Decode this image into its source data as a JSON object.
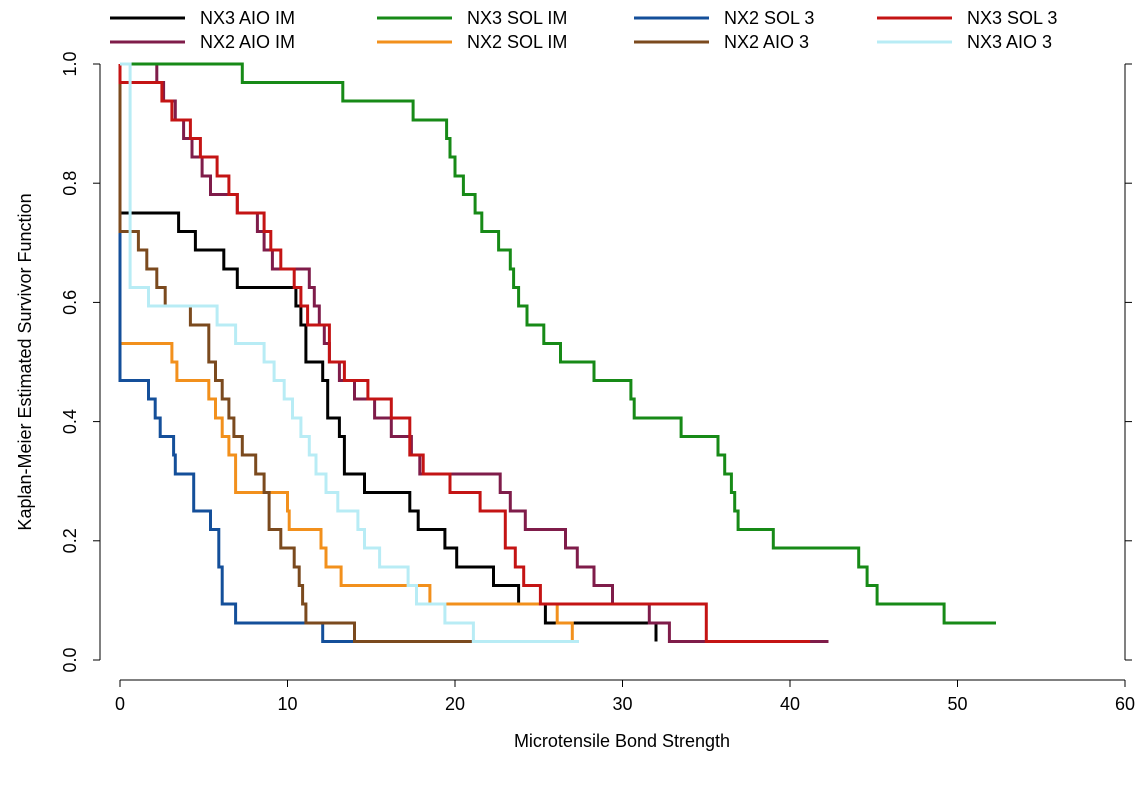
{
  "chart_data": {
    "type": "line",
    "step": true,
    "xlabel": "Microtensile Bond Strength",
    "ylabel": "Kaplan-Meier Estimated Survivor Function",
    "xlim": [
      0,
      60
    ],
    "ylim": [
      0,
      1
    ],
    "xticks": [
      "0",
      "10",
      "20",
      "30",
      "40",
      "50",
      "60"
    ],
    "yticks": [
      "0.0",
      "0.2",
      "0.4",
      "0.6",
      "0.8",
      "1.0"
    ],
    "grid": false,
    "legend_position": "top",
    "series": [
      {
        "name": "NX3 AIO IM",
        "color": "#000000",
        "x": [
          0,
          3.5,
          4.5,
          6.2,
          7,
          10.5,
          10.8,
          11.1,
          12.1,
          12.4,
          13.1,
          13.4,
          14.6,
          15.3,
          17.3,
          17.8,
          19.4,
          20.1,
          22.3,
          23.8,
          24.1,
          25.4,
          32
        ],
        "y": [
          0.75,
          0.719,
          0.688,
          0.656,
          0.625,
          0.594,
          0.562,
          0.5,
          0.469,
          0.406,
          0.375,
          0.312,
          0.281,
          0.281,
          0.25,
          0.219,
          0.188,
          0.156,
          0.125,
          0.094,
          0.094,
          0.062,
          0.031
        ]
      },
      {
        "name": "NX2 AIO IM",
        "color": "#7f1c4a",
        "x": [
          0,
          2.2,
          2.6,
          3.3,
          3.8,
          4.3,
          4.9,
          5.4,
          7,
          8.2,
          8.6,
          9.1,
          11.3,
          11.6,
          11.9,
          12.2,
          12.5,
          13.1,
          14,
          15.2,
          16.2,
          17.4,
          17.9,
          22.7,
          23.3,
          24.2,
          26.6,
          27.3,
          28.3,
          29.4,
          31.6,
          32.8,
          33.7,
          36.1,
          36.4,
          36.7,
          37.2,
          38.2,
          38.6,
          40.2,
          42.3,
          41.5
        ],
        "y": [
          1,
          0.969,
          0.938,
          0.906,
          0.875,
          0.844,
          0.812,
          0.781,
          0.75,
          0.719,
          0.688,
          0.656,
          0.625,
          0.594,
          0.562,
          0.531,
          0.5,
          0.469,
          0.438,
          0.406,
          0.375,
          0.344,
          0.312,
          0.281,
          0.25,
          0.219,
          0.188,
          0.156,
          0.125,
          0.094,
          0.062,
          0.031,
          0.031,
          0.031,
          0.031,
          0.031,
          0.031,
          0.031,
          0.031,
          0.031,
          0.031,
          0.031
        ]
      },
      {
        "name": "NX3 SOL IM",
        "color": "#178a17",
        "x": [
          0,
          7.3,
          13.3,
          17.5,
          19.5,
          19.7,
          20,
          20.5,
          21.2,
          21.6,
          22.6,
          23.3,
          23.5,
          23.8,
          24.3,
          25.3,
          26.3,
          28.3,
          30.5,
          30.7,
          31,
          31.3,
          33.5,
          35.7,
          36.1,
          36.5,
          36.7,
          36.9,
          38.8,
          39,
          39.3,
          44.1,
          44.6,
          45.2,
          45.6,
          49.2,
          52.3
        ],
        "y": [
          1,
          0.969,
          0.938,
          0.906,
          0.875,
          0.844,
          0.812,
          0.781,
          0.75,
          0.719,
          0.688,
          0.656,
          0.625,
          0.594,
          0.562,
          0.531,
          0.5,
          0.469,
          0.438,
          0.406,
          0.406,
          0.406,
          0.375,
          0.344,
          0.312,
          0.281,
          0.25,
          0.219,
          0.219,
          0.188,
          0.188,
          0.156,
          0.125,
          0.094,
          0.094,
          0.062,
          0.062
        ]
      },
      {
        "name": "NX2 SOL IM",
        "color": "#f2901c",
        "x": [
          0,
          3.1,
          3.4,
          5.3,
          5.7,
          6.1,
          6.5,
          6.9,
          10,
          10.1,
          12,
          12.3,
          13.2,
          18.5,
          19.3,
          26.1,
          27
        ],
        "y": [
          0.531,
          0.5,
          0.469,
          0.438,
          0.406,
          0.375,
          0.344,
          0.281,
          0.25,
          0.219,
          0.188,
          0.156,
          0.125,
          0.094,
          0.094,
          0.062,
          0.031
        ]
      },
      {
        "name": "NX2 SOL 3",
        "color": "#144f9a",
        "x": [
          0,
          1.7,
          2.1,
          2.4,
          3.2,
          3.3,
          4.4,
          5.4,
          5.9,
          6.1,
          6.9,
          12.1,
          14,
          21
        ],
        "y": [
          0.469,
          0.438,
          0.406,
          0.375,
          0.344,
          0.312,
          0.25,
          0.219,
          0.156,
          0.094,
          0.062,
          0.031,
          0.031,
          0.031
        ]
      },
      {
        "name": "NX2 AIO 3",
        "color": "#7b4a1e",
        "x": [
          0,
          1.1,
          1.6,
          2.2,
          2.7,
          4.2,
          5.3,
          5.7,
          6.1,
          6.5,
          6.8,
          7.3,
          8.1,
          8.6,
          8.9,
          9.6,
          10.4,
          10.7,
          10.9,
          11.1,
          14,
          21
        ],
        "y": [
          0.719,
          0.688,
          0.656,
          0.625,
          0.594,
          0.562,
          0.5,
          0.469,
          0.438,
          0.406,
          0.375,
          0.344,
          0.312,
          0.281,
          0.219,
          0.188,
          0.156,
          0.125,
          0.094,
          0.062,
          0.031,
          0.031
        ]
      },
      {
        "name": "NX3 SOL 3",
        "color": "#c41414",
        "x": [
          0,
          2.5,
          3.1,
          4.2,
          4.8,
          5.8,
          6.5,
          7,
          8.6,
          9,
          9.6,
          10.4,
          10.8,
          11.2,
          12.5,
          13.4,
          14.8,
          16.2,
          17.3,
          18.1,
          19.7,
          21.5,
          23,
          23.6,
          24.1,
          25.1,
          30.8,
          35,
          41.2
        ],
        "y": [
          0.969,
          0.938,
          0.906,
          0.875,
          0.844,
          0.812,
          0.781,
          0.75,
          0.719,
          0.688,
          0.656,
          0.625,
          0.594,
          0.562,
          0.5,
          0.469,
          0.438,
          0.406,
          0.344,
          0.312,
          0.281,
          0.25,
          0.188,
          0.156,
          0.125,
          0.094,
          0.094,
          0.031,
          0.031
        ]
      },
      {
        "name": "NX3 AIO 3",
        "color": "#b8ecf5",
        "x": [
          0,
          0.6,
          1.7,
          5.8,
          6.9,
          7.5,
          8.6,
          9.2,
          9.8,
          10.3,
          10.8,
          11.3,
          11.7,
          12.3,
          13,
          14.2,
          14.6,
          15.5,
          16.1,
          17.2,
          17.7,
          19.1,
          19.4,
          20.1,
          21.1,
          25.8,
          27.4
        ],
        "y": [
          1,
          0.625,
          0.594,
          0.562,
          0.531,
          0.531,
          0.5,
          0.469,
          0.438,
          0.406,
          0.375,
          0.344,
          0.312,
          0.281,
          0.25,
          0.219,
          0.188,
          0.156,
          0.156,
          0.125,
          0.094,
          0.094,
          0.062,
          0.062,
          0.031,
          0.031,
          0.031
        ]
      }
    ]
  }
}
